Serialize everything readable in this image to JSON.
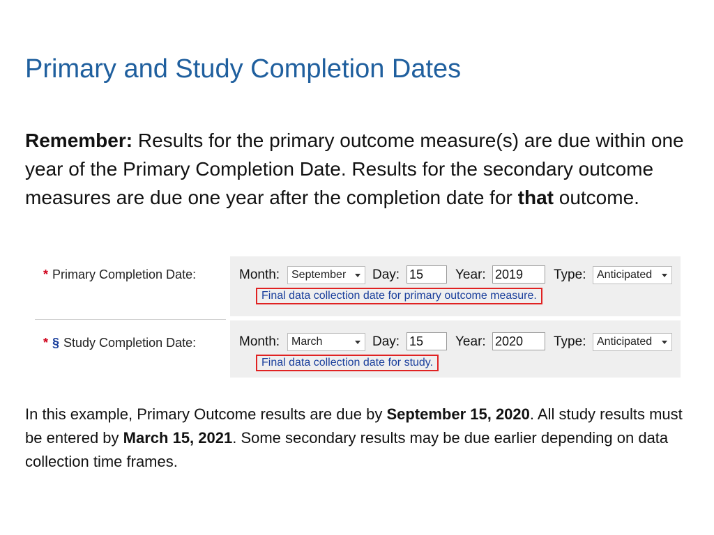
{
  "title": "Primary and Study Completion Dates",
  "intro": {
    "lead": "Remember:",
    "part1": " Results for the primary outcome measure(s) are due within one year of the Primary Completion Date. Results for the secondary outcome measures are due one year after the completion date for ",
    "emphasis": "that",
    "part2": " outcome."
  },
  "form": {
    "rows": [
      {
        "required_mark": "*",
        "section_mark": "",
        "label": "Primary Completion Date:",
        "month_label": "Month:",
        "month_value": "September",
        "day_label": "Day:",
        "day_value": "15",
        "year_label": "Year:",
        "year_value": "2019",
        "type_label": "Type:",
        "type_value": "Anticipated",
        "hint": "Final data collection date for primary outcome measure."
      },
      {
        "required_mark": "*",
        "section_mark": "§",
        "label": "Study Completion Date:",
        "month_label": "Month:",
        "month_value": "March",
        "day_label": "Day:",
        "day_value": "15",
        "year_label": "Year:",
        "year_value": "2020",
        "type_label": "Type:",
        "type_value": "Anticipated",
        "hint": "Final data collection date for study."
      }
    ]
  },
  "outro": {
    "part1": "In this example, Primary Outcome results are due by ",
    "date1": "September 15, 2020",
    "part2": ". All study results must be entered by ",
    "date2": "March 15, 2021",
    "part3": ". Some secondary results may be due earlier depending on data collection time frames."
  }
}
